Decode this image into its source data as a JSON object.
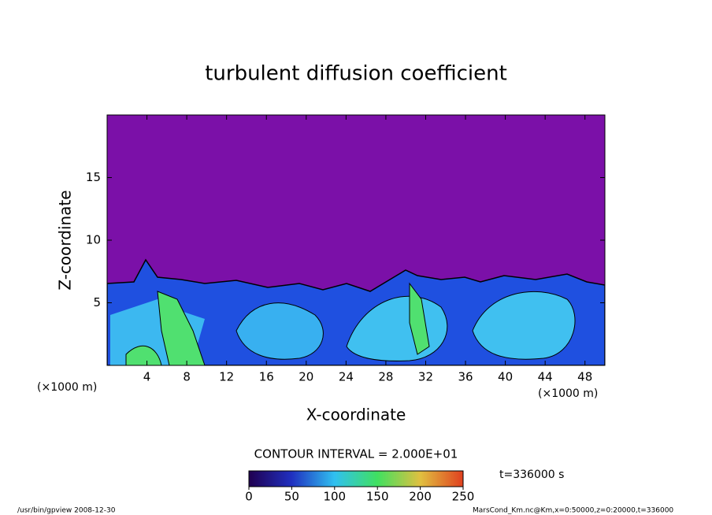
{
  "chart_data": {
    "type": "contour",
    "title": "turbulent diffusion coefficient",
    "xlabel": "X-coordinate",
    "ylabel": "Z-coordinate",
    "x_unit": "(×1000 m)",
    "xlim": [
      0,
      50
    ],
    "xticks": [
      4,
      8,
      12,
      16,
      20,
      24,
      28,
      32,
      36,
      40,
      44,
      48
    ],
    "ylim": [
      0,
      20
    ],
    "yticks": [
      5,
      10,
      15
    ],
    "contour_interval": "CONTOUR INTERVAL = 2.000E+01",
    "time_label": "t=336000 s",
    "colorbar": {
      "lim": [
        0,
        250
      ],
      "ticks": [
        0,
        50,
        100,
        150,
        200,
        250
      ]
    },
    "footer_left": "/usr/bin/gpview   2008-12-30",
    "footer_right": "MarsCond_Km.nc@Km,x=0:50000,z=0:20000,t=336000"
  }
}
